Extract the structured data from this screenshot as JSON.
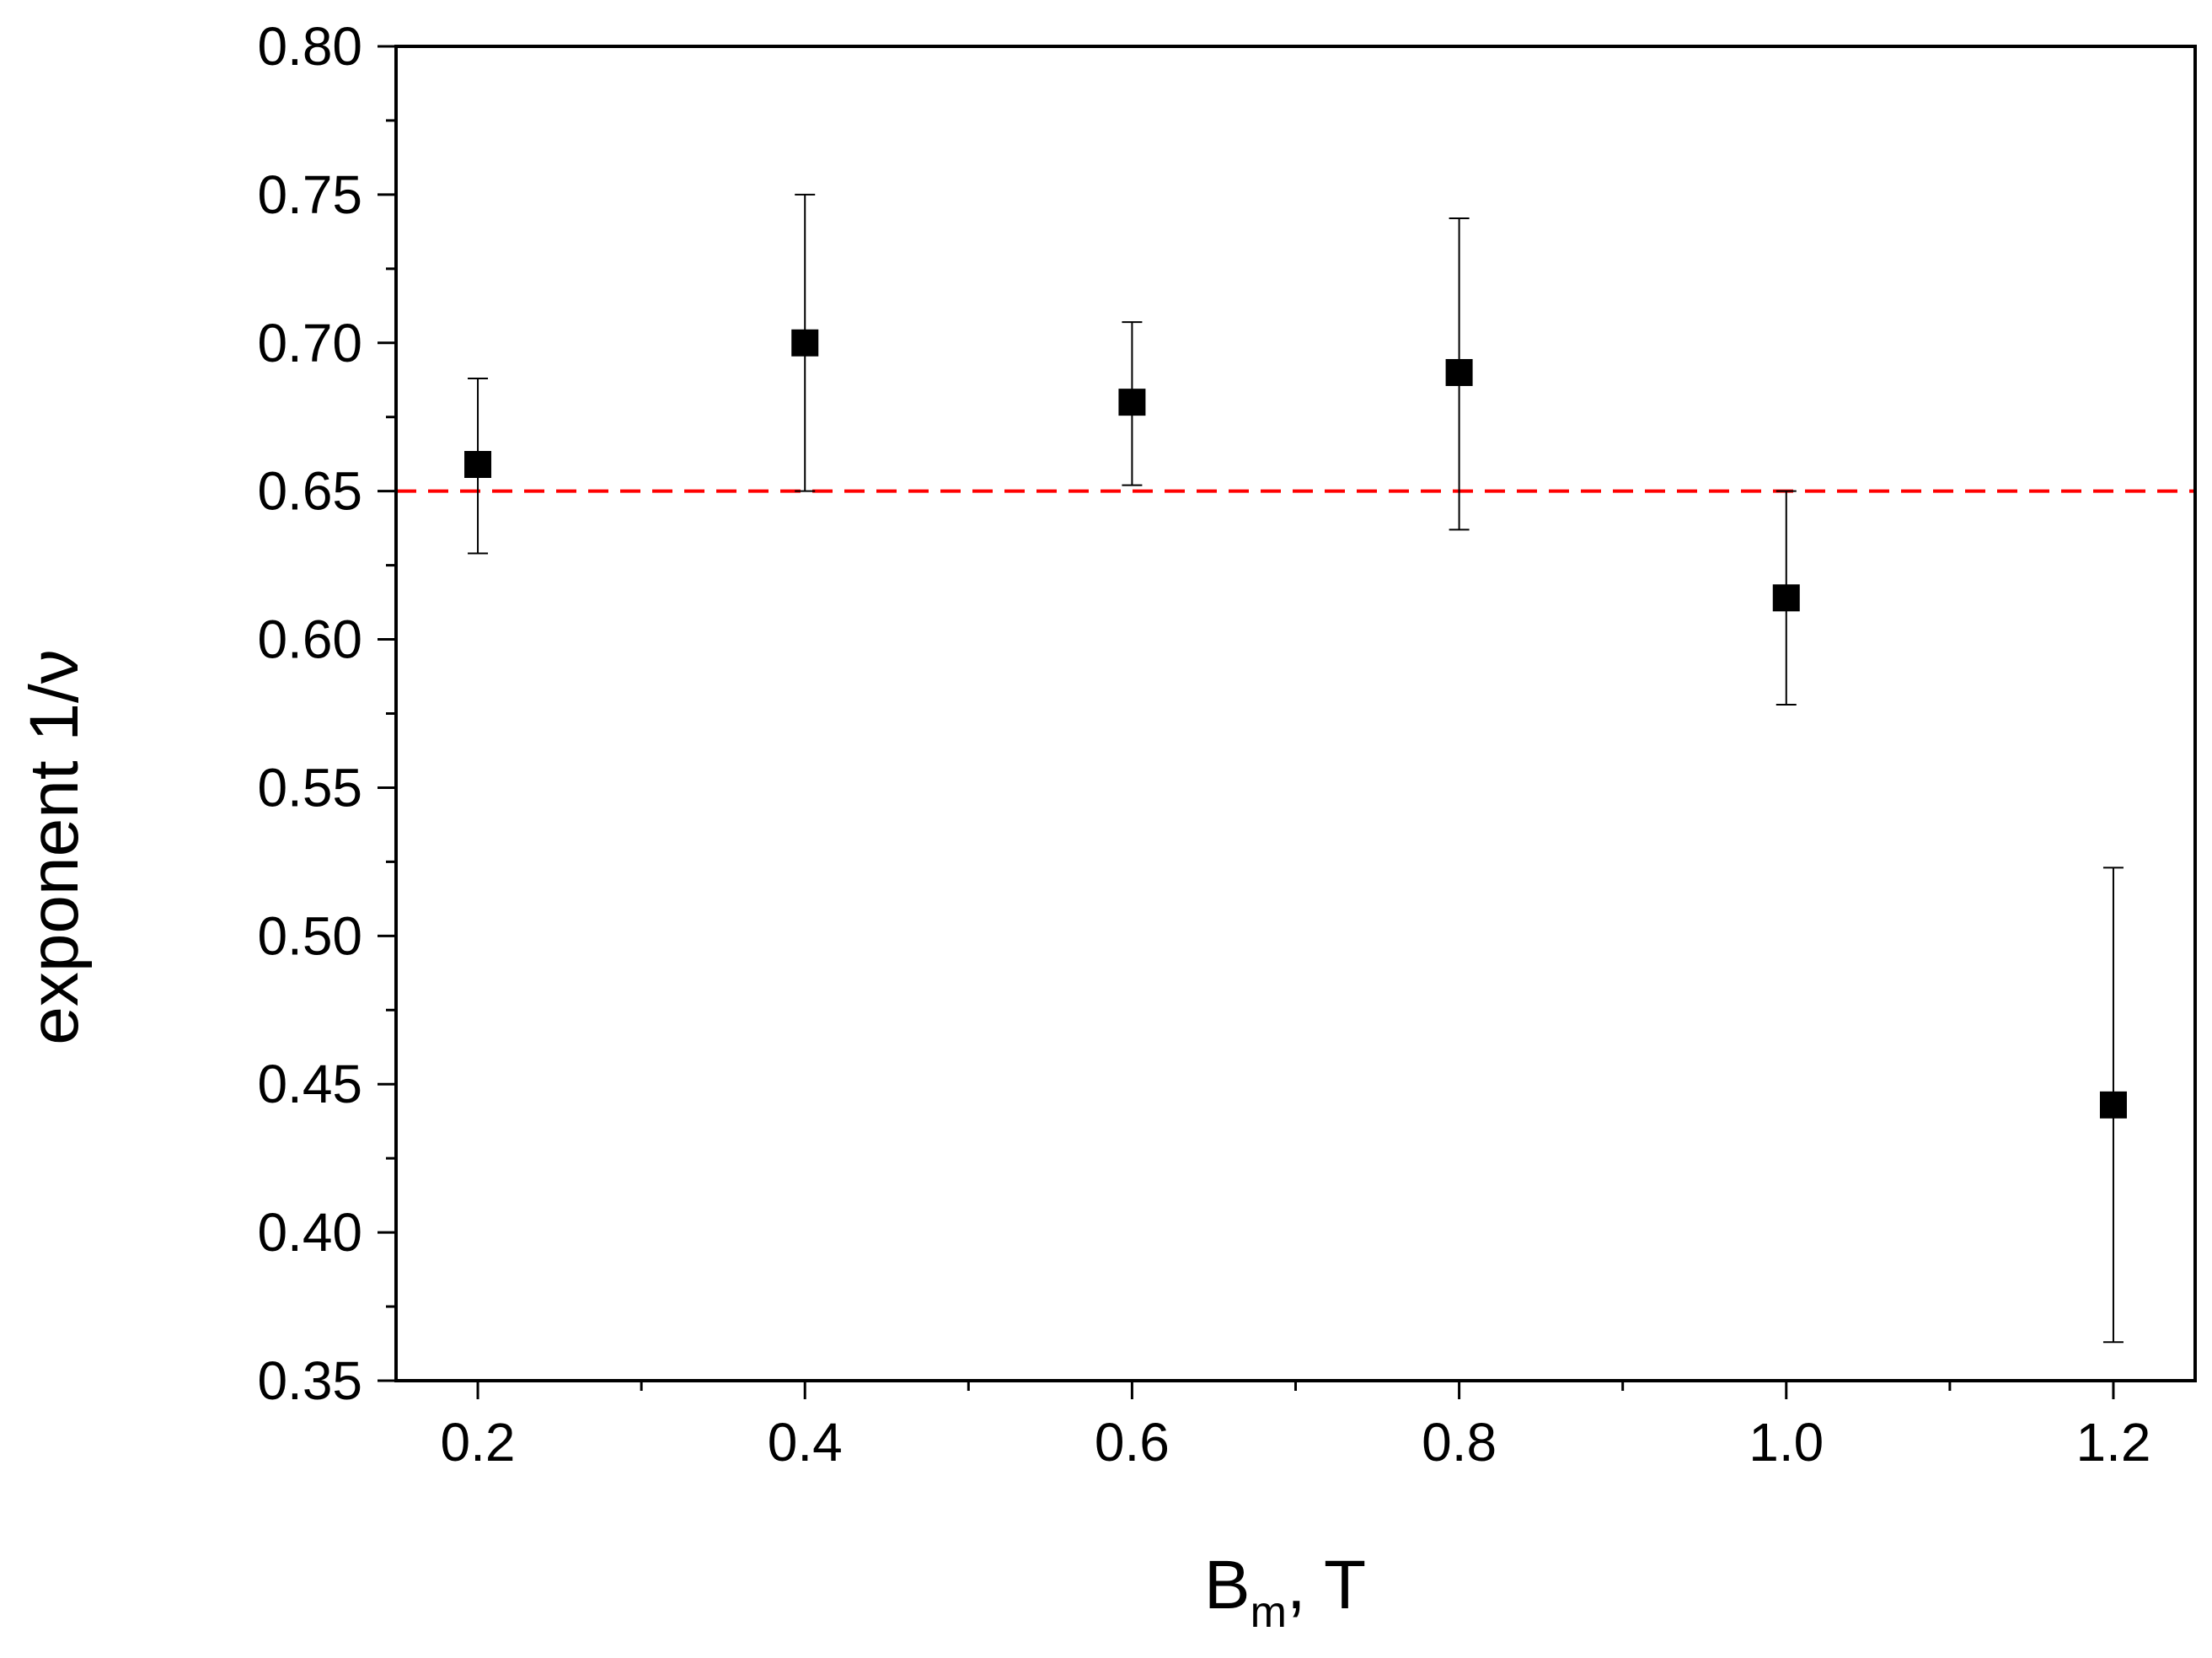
{
  "chart_data": {
    "type": "scatter",
    "title": "",
    "xlabel": "B",
    "xlabel_sub": "m",
    "xlabel_suffix": ", T",
    "ylabel": "exponent 1/ν",
    "xlim": [
      0.15,
      1.25
    ],
    "ylim": [
      0.35,
      0.8
    ],
    "xticks": [
      0.2,
      0.4,
      0.6,
      0.8,
      1.0,
      1.2
    ],
    "xtick_labels": [
      "0.2",
      "0.4",
      "0.6",
      "0.8",
      "1.0",
      "1.2"
    ],
    "yticks": [
      0.35,
      0.4,
      0.45,
      0.5,
      0.55,
      0.6,
      0.65,
      0.7,
      0.75,
      0.8
    ],
    "ytick_labels": [
      "0.35",
      "0.40",
      "0.45",
      "0.50",
      "0.55",
      "0.60",
      "0.65",
      "0.70",
      "0.75",
      "0.80"
    ],
    "grid": false,
    "marker": "square",
    "marker_color": "#000000",
    "points": [
      {
        "x": 0.2,
        "y": 0.659,
        "err_low": 0.629,
        "err_high": 0.688
      },
      {
        "x": 0.4,
        "y": 0.7,
        "err_low": 0.65,
        "err_high": 0.75
      },
      {
        "x": 0.6,
        "y": 0.68,
        "err_low": 0.652,
        "err_high": 0.707
      },
      {
        "x": 0.8,
        "y": 0.69,
        "err_low": 0.637,
        "err_high": 0.742
      },
      {
        "x": 1.0,
        "y": 0.614,
        "err_low": 0.578,
        "err_high": 0.65
      },
      {
        "x": 1.2,
        "y": 0.443,
        "err_low": 0.363,
        "err_high": 0.523
      }
    ],
    "reference_line": {
      "y": 0.65,
      "style": "dashed",
      "color": "#ff0000"
    }
  }
}
